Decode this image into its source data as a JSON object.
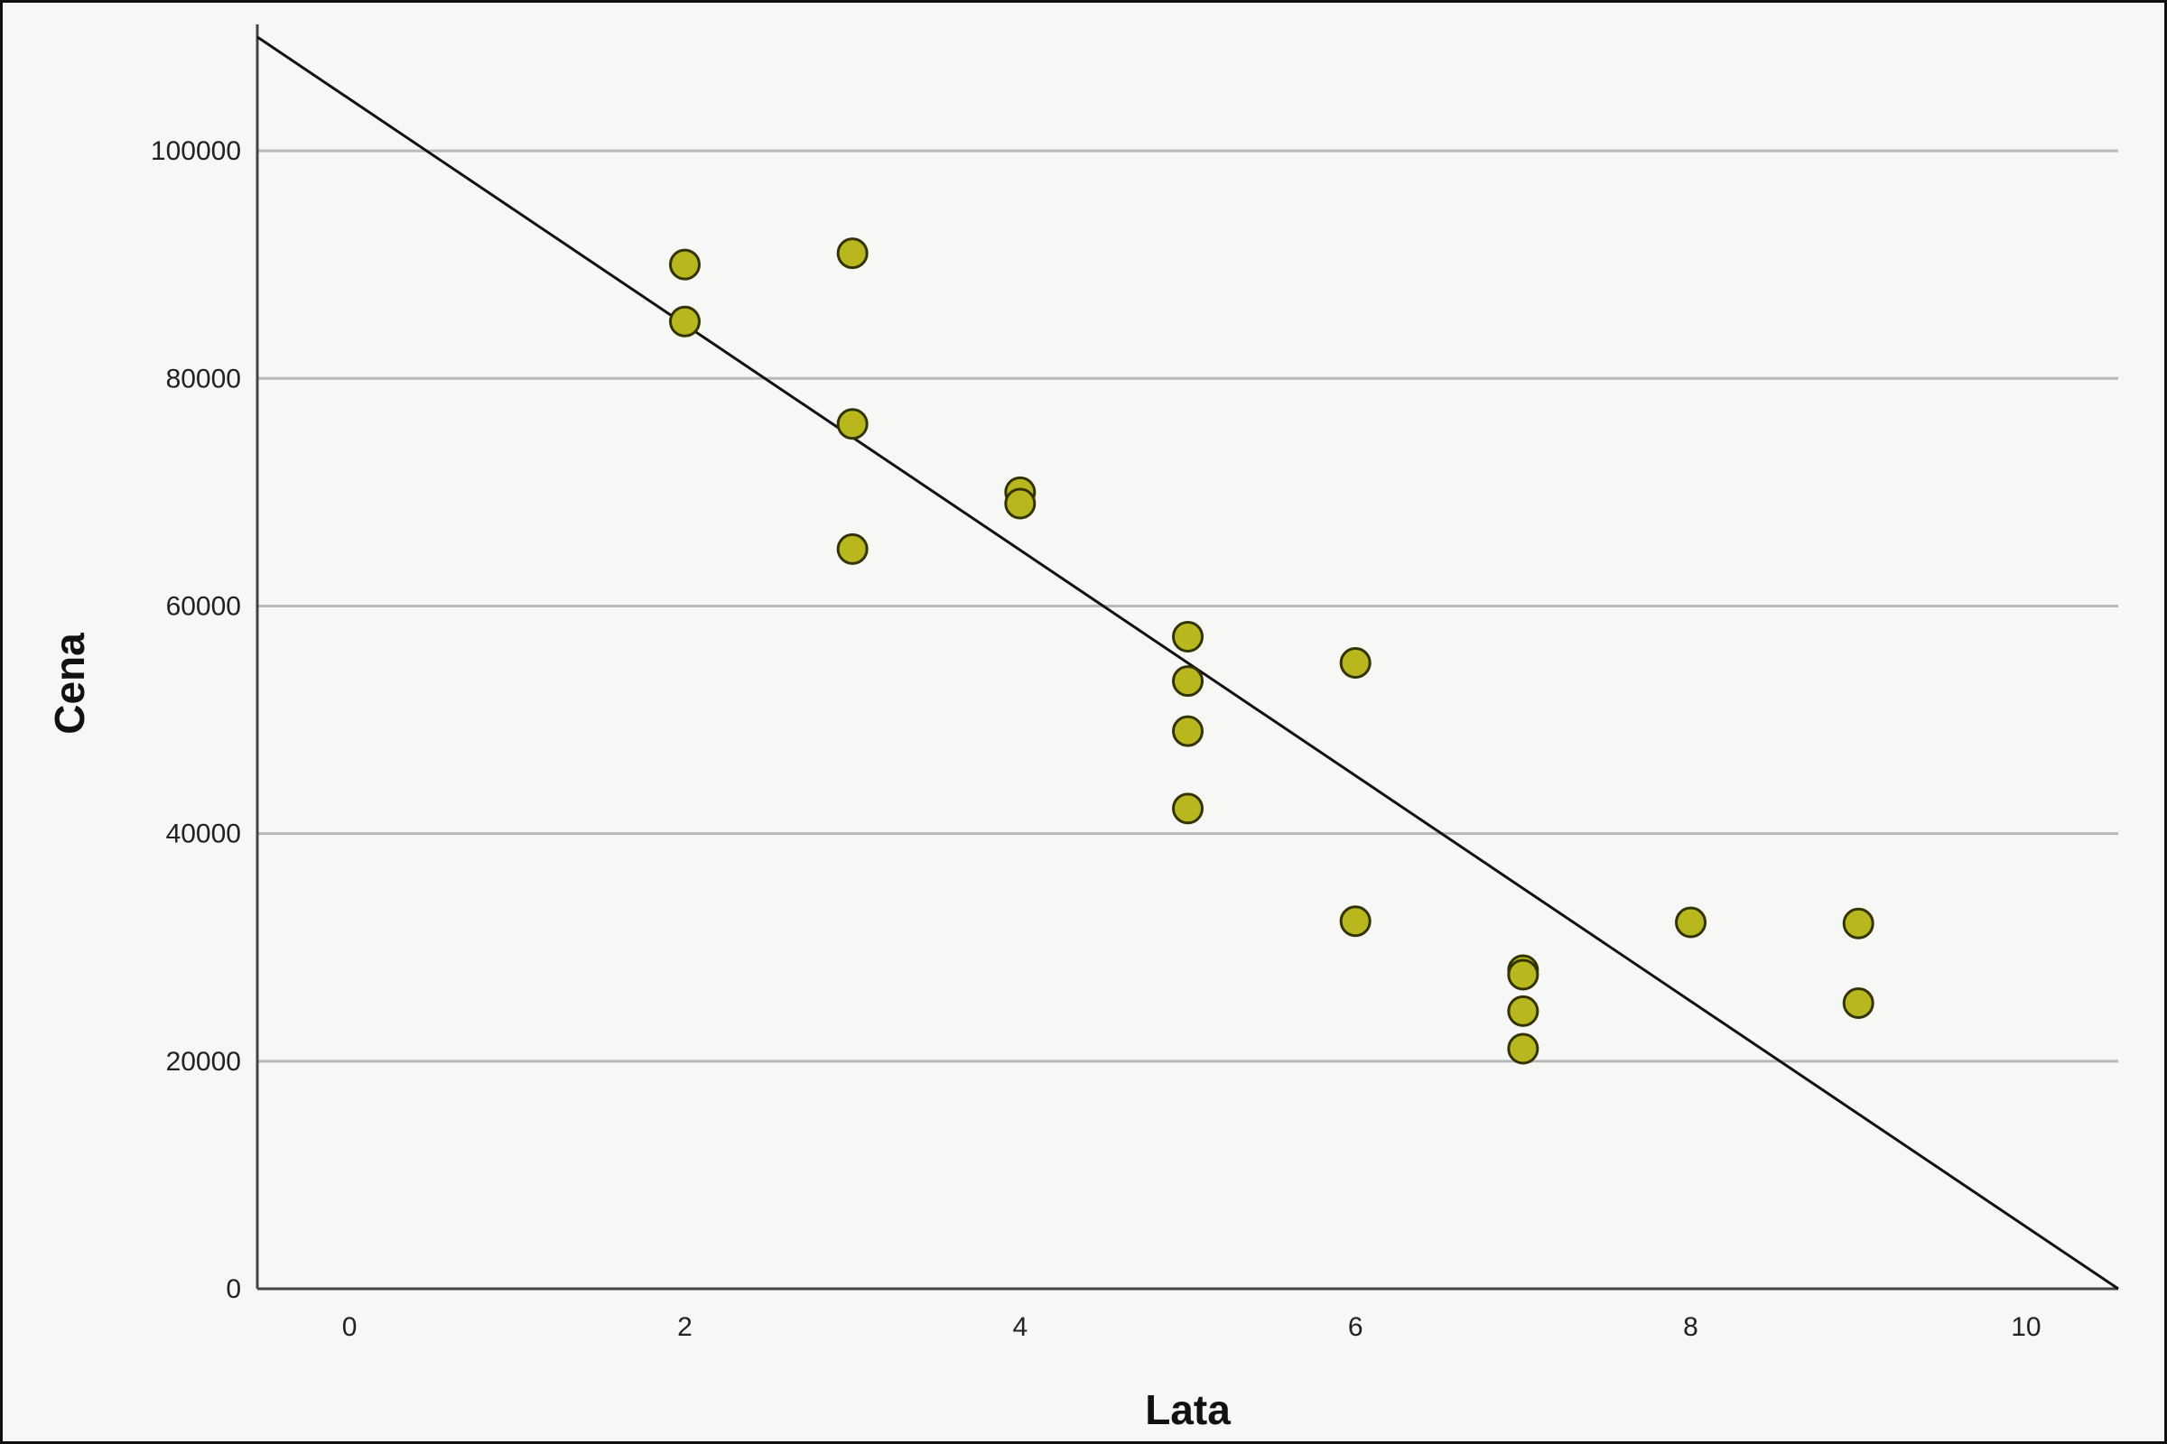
{
  "chart_data": {
    "type": "scatter",
    "title": "",
    "xlabel": "Lata",
    "ylabel": "Cena",
    "xlim": [
      -0.55,
      10.55
    ],
    "ylim": [
      0,
      110000
    ],
    "xticks": [
      0,
      2,
      4,
      6,
      8,
      10
    ],
    "yticks": [
      0,
      20000,
      40000,
      60000,
      80000,
      100000
    ],
    "xtick_labels": [
      "0",
      "2",
      "4",
      "6",
      "8",
      "10"
    ],
    "ytick_labels": [
      "0",
      "20000",
      "40000",
      "60000",
      "80000",
      "100000"
    ],
    "grid": "horizontal",
    "marker_color": "#b8b81e",
    "marker_edge_color": "#333300",
    "line_color": "#111111",
    "points": [
      {
        "x": 2,
        "y": 90000
      },
      {
        "x": 2,
        "y": 85000
      },
      {
        "x": 3,
        "y": 91000
      },
      {
        "x": 3,
        "y": 76000
      },
      {
        "x": 3,
        "y": 65000
      },
      {
        "x": 4,
        "y": 70000
      },
      {
        "x": 4,
        "y": 69000
      },
      {
        "x": 5,
        "y": 57300
      },
      {
        "x": 5,
        "y": 53400
      },
      {
        "x": 5,
        "y": 49000
      },
      {
        "x": 5,
        "y": 42200
      },
      {
        "x": 6,
        "y": 55000
      },
      {
        "x": 6,
        "y": 32300
      },
      {
        "x": 7,
        "y": 28000
      },
      {
        "x": 7,
        "y": 27600
      },
      {
        "x": 7,
        "y": 24400
      },
      {
        "x": 7,
        "y": 21100
      },
      {
        "x": 8,
        "y": 32200
      },
      {
        "x": 9,
        "y": 32100
      },
      {
        "x": 9,
        "y": 25100
      }
    ],
    "fit_line": {
      "x": [
        -0.55,
        10.55
      ],
      "y": [
        110000,
        0
      ]
    }
  }
}
